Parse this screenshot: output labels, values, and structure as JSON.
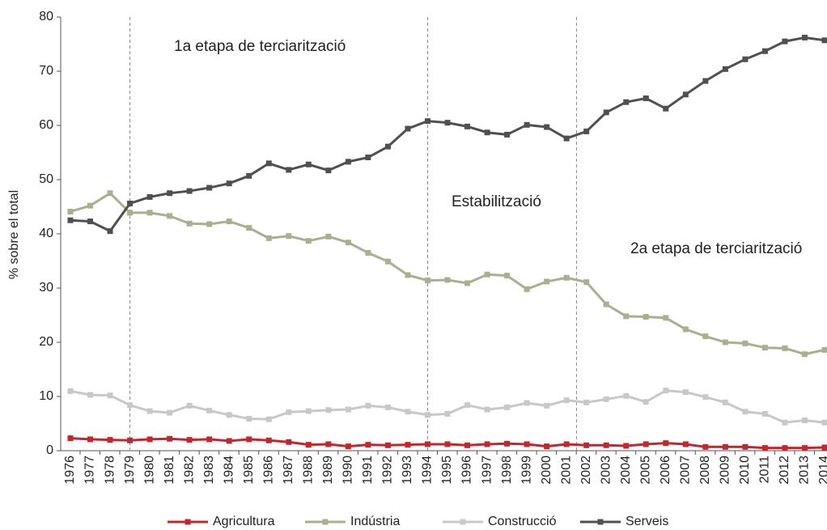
{
  "chart_data": {
    "type": "line",
    "y_label": "% sobre el total",
    "x": [
      1976,
      1977,
      1978,
      1979,
      1980,
      1981,
      1982,
      1983,
      1984,
      1985,
      1986,
      1987,
      1988,
      1989,
      1990,
      1991,
      1992,
      1993,
      1994,
      1995,
      1996,
      1997,
      1998,
      1999,
      2000,
      2001,
      2002,
      2003,
      2004,
      2005,
      2006,
      2007,
      2008,
      2009,
      2010,
      2011,
      2012,
      2013,
      2014
    ],
    "xlim": [
      1976,
      2014
    ],
    "xticks": [
      1976,
      1977,
      1978,
      1979,
      1980,
      1981,
      1982,
      1983,
      1984,
      1985,
      1986,
      1987,
      1988,
      1989,
      1990,
      1991,
      1992,
      1993,
      1994,
      1995,
      1996,
      1997,
      1998,
      1999,
      2000,
      2001,
      2002,
      2003,
      2004,
      2005,
      2006,
      2007,
      2008,
      2009,
      2010,
      2011,
      2012,
      2013,
      2014
    ],
    "ylim": [
      0,
      80
    ],
    "yticks": [
      0,
      10,
      20,
      30,
      40,
      50,
      60,
      70,
      80
    ],
    "dividers": [
      1979,
      1994,
      2001.5
    ],
    "annotations": [
      "1a etapa de terciarització",
      "Estabilització",
      "2a etapa de terciarització"
    ],
    "series": [
      {
        "name": "Agricultura",
        "color": "#c0282d",
        "values": [
          2.3,
          2.1,
          2.0,
          1.9,
          2.1,
          2.2,
          2.0,
          2.1,
          1.8,
          2.1,
          1.9,
          1.6,
          1.1,
          1.2,
          0.8,
          1.1,
          1.0,
          1.1,
          1.2,
          1.2,
          1.0,
          1.2,
          1.3,
          1.2,
          0.8,
          1.2,
          1.0,
          1.0,
          0.9,
          1.2,
          1.4,
          1.2,
          0.7,
          0.7,
          0.7,
          0.5,
          0.5,
          0.5,
          0.6
        ]
      },
      {
        "name": "Indústria",
        "color": "#a9b08e",
        "values": [
          44.1,
          45.2,
          47.5,
          43.9,
          43.9,
          43.3,
          41.9,
          41.8,
          42.3,
          41.1,
          39.2,
          39.6,
          38.7,
          39.5,
          38.4,
          36.5,
          34.9,
          32.4,
          31.4,
          31.5,
          30.9,
          32.5,
          32.3,
          29.8,
          31.2,
          31.9,
          31.1,
          27.0,
          24.8,
          24.7,
          24.5,
          22.4,
          21.1,
          20.0,
          19.8,
          19.0,
          18.9,
          17.8,
          18.6
        ]
      },
      {
        "name": "Construcció",
        "color": "#c8c8c8",
        "values": [
          11.0,
          10.3,
          10.2,
          8.4,
          7.3,
          7.0,
          8.3,
          7.4,
          6.6,
          5.9,
          5.8,
          7.1,
          7.3,
          7.5,
          7.6,
          8.3,
          8.0,
          7.2,
          6.6,
          6.8,
          8.4,
          7.6,
          8.0,
          8.8,
          8.3,
          9.3,
          8.9,
          9.5,
          10.1,
          9.0,
          11.1,
          10.8,
          9.9,
          8.9,
          7.2,
          6.8,
          5.2,
          5.6,
          5.2
        ]
      },
      {
        "name": "Serveis",
        "color": "#505050",
        "values": [
          42.5,
          42.3,
          40.5,
          45.6,
          46.8,
          47.5,
          47.9,
          48.5,
          49.3,
          50.7,
          53.0,
          51.8,
          52.8,
          51.7,
          53.3,
          54.1,
          56.1,
          59.4,
          60.8,
          60.5,
          59.8,
          58.7,
          58.3,
          60.1,
          59.7,
          57.6,
          58.9,
          62.4,
          64.3,
          65.0,
          63.1,
          65.7,
          68.2,
          70.4,
          72.2,
          73.7,
          75.5,
          76.2,
          75.7
        ]
      }
    ]
  }
}
